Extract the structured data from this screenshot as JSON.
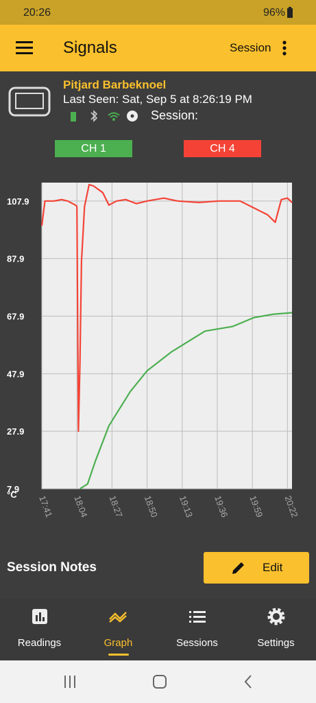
{
  "status_bar": {
    "time": "20:26",
    "battery": "96%"
  },
  "app_bar": {
    "title": "Signals",
    "action": "Session"
  },
  "device": {
    "name": "Pitjard Barbeknoel",
    "last_seen": "Last Seen: Sat, Sep 5 at 8:26:19 PM",
    "session": "Session:"
  },
  "chart_data": {
    "type": "line",
    "y_label": "°C",
    "grid": true,
    "xlim": [
      "17:41",
      "20:25"
    ],
    "xticks": [
      "17:41",
      "18:04",
      "18:27",
      "18:50",
      "19:13",
      "19:36",
      "19:59",
      "20:22"
    ],
    "ylim": [
      7.9,
      114.3
    ],
    "yticks": [
      7.9,
      27.9,
      47.9,
      67.9,
      87.9,
      107.9
    ],
    "series": [
      {
        "name": "CH 1",
        "color": "#4caf50",
        "x": [
          "18:06",
          "18:11",
          "18:16",
          "18:25",
          "18:39",
          "18:50",
          "19:06",
          "19:28",
          "19:46",
          "20:00",
          "20:13",
          "20:25"
        ],
        "values": [
          7.9,
          9.6,
          17.4,
          29.8,
          41.7,
          48.9,
          55.5,
          62.7,
          64.3,
          67.4,
          68.6,
          69.1
        ]
      },
      {
        "name": "CH 4",
        "color": "#f44336",
        "x": [
          "17:41",
          "17:43",
          "17:49",
          "17:54",
          "17:58",
          "18:03",
          "18:04",
          "18:05",
          "18:06",
          "18:07",
          "18:09",
          "18:12",
          "18:15",
          "18:21",
          "18:25",
          "18:30",
          "18:36",
          "18:43",
          "18:50",
          "19:01",
          "19:10",
          "19:24",
          "19:37",
          "19:51",
          "20:00",
          "20:09",
          "20:14",
          "20:18",
          "20:22",
          "20:25"
        ],
        "values": [
          99.3,
          107.9,
          107.9,
          108.4,
          107.9,
          106.5,
          106,
          27.9,
          51.2,
          87,
          106,
          113.6,
          113.1,
          110.8,
          106.5,
          107.9,
          108.4,
          107,
          107.9,
          108.9,
          107.9,
          107.4,
          107.9,
          107.9,
          105.5,
          103.1,
          100.5,
          108.4,
          108.9,
          107.4
        ]
      }
    ]
  },
  "session_notes": {
    "title": "Session Notes",
    "button": "Edit"
  },
  "nav": [
    "Readings",
    "Graph",
    "Sessions",
    "Settings"
  ]
}
